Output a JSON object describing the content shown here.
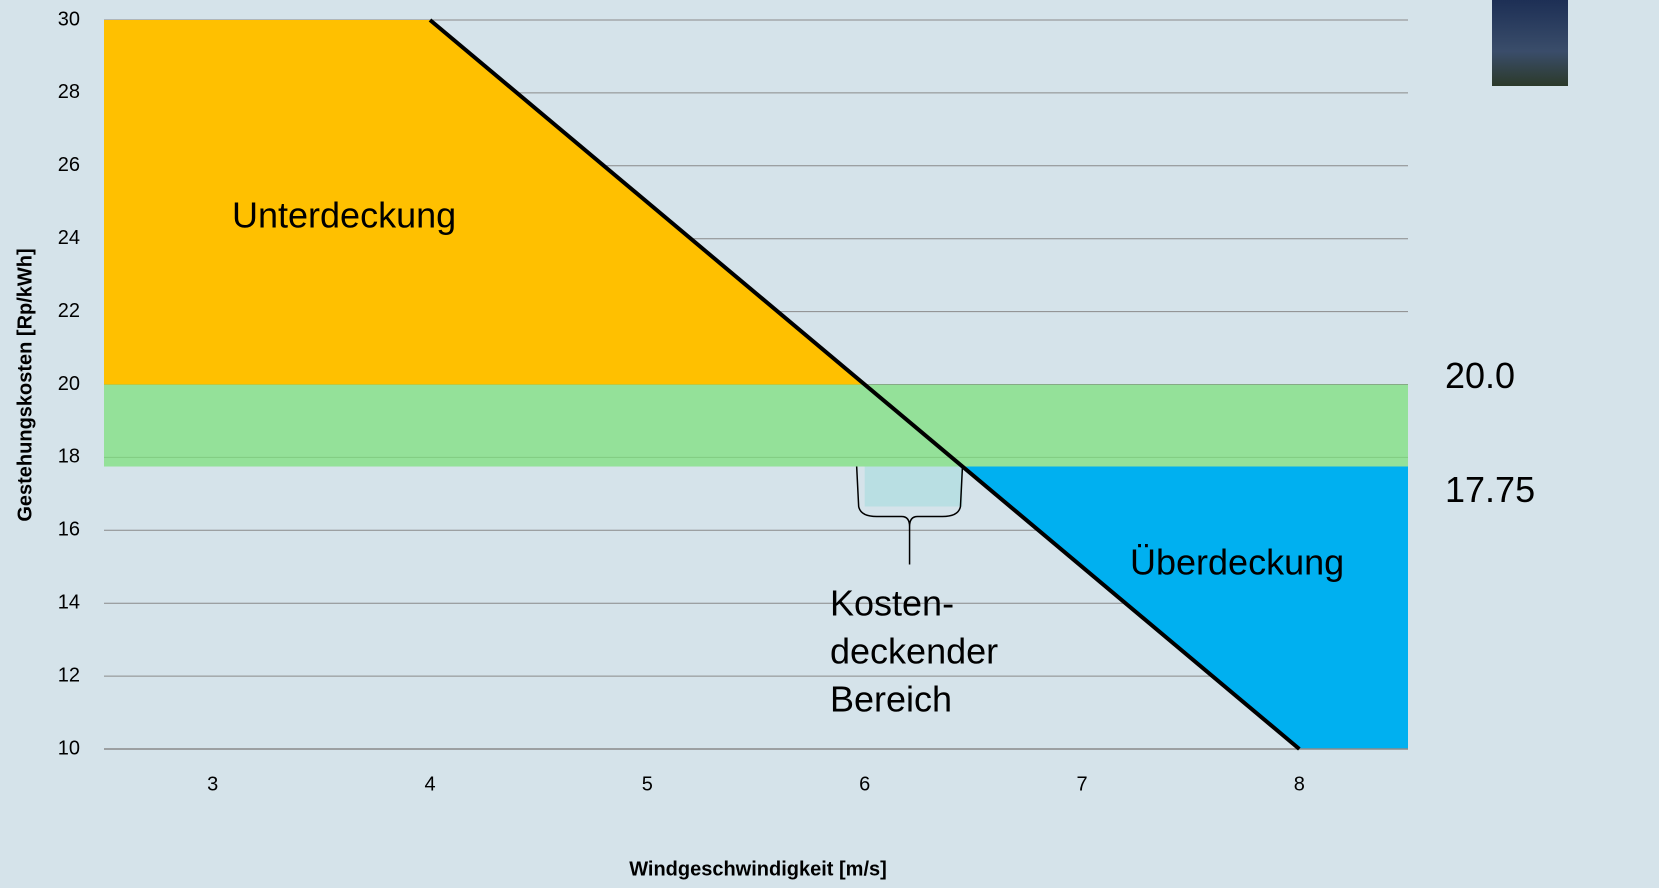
{
  "chart_data": {
    "type": "line",
    "x_label": "Windgeschwindigkeit [m/s]",
    "y_label": "Gestehungskosten [Rp/kWh]",
    "x": [
      4,
      8
    ],
    "values": [
      30,
      10
    ],
    "color": "#000000",
    "xlim": [
      2.5,
      8.5
    ],
    "ylim": [
      10,
      30
    ],
    "xticks": [
      3,
      4,
      5,
      6,
      7,
      8
    ],
    "yticks": [
      10,
      12,
      14,
      16,
      18,
      20,
      22,
      24,
      26,
      28,
      30
    ],
    "grid": true,
    "band": {
      "values": [
        17.75,
        20
      ],
      "value_labels": [
        "17.75",
        "20.0"
      ],
      "color": "#7ee07e"
    },
    "under_color": "#ffc000",
    "over_color": "#00b0f0",
    "annotations": {
      "under": "Unterdeckung",
      "over": "Überdeckung",
      "range": [
        "Kosten-",
        "deckender",
        "Bereich"
      ]
    }
  }
}
